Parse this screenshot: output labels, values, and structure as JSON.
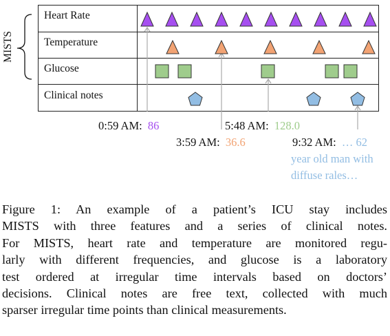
{
  "figure": {
    "group_label": "MISTS",
    "rows": [
      {
        "label": "Heart Rate",
        "marker": "triangle",
        "color": "#a64ff0"
      },
      {
        "label": "Temperature",
        "marker": "triangle",
        "color": "#f2a373"
      },
      {
        "label": "Glucose",
        "marker": "square",
        "color": "#9fcc8c"
      },
      {
        "label": "Clinical notes",
        "marker": "pentagon",
        "color": "#92bde3"
      }
    ],
    "annotations": [
      {
        "time": "0:59 AM:",
        "value": "86",
        "color": "#a64ff0"
      },
      {
        "time": "3:59 AM:",
        "value": "36.6",
        "color": "#f2a373"
      },
      {
        "time": "5:48 AM:",
        "value": "128.0",
        "color": "#9fcc8c"
      },
      {
        "time": "9:32 AM:",
        "value": "… 62",
        "value_lines": [
          "year old man with",
          "diffuse rales…"
        ],
        "color": "#92bde3"
      }
    ]
  },
  "caption": {
    "lines": [
      "Figure 1:  An example of a patient’s ICU stay includes",
      "MISTS with three features and a series of clinical notes.",
      "For MISTS, heart rate and temperature are monitored regu-",
      "larly with different frequencies, and glucose is a laboratory",
      "test ordered at irregular time intervals based on doctors’",
      "decisions. Clinical notes are free text, collected with much",
      "sparser irregular time points than clinical measurements."
    ]
  }
}
